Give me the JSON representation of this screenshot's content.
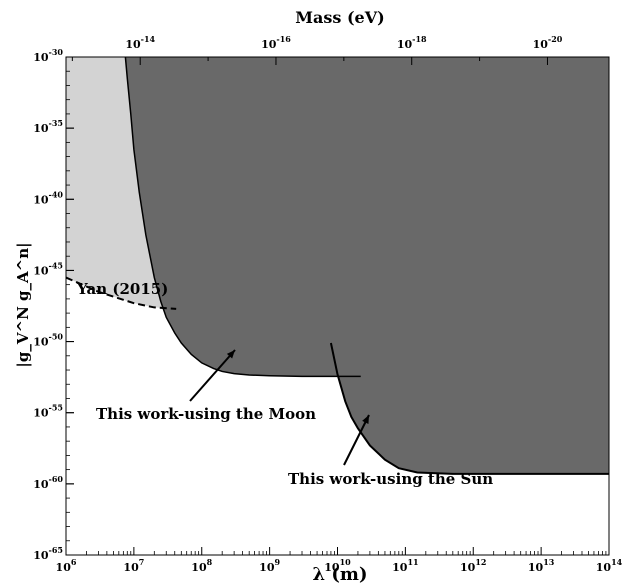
{
  "chart_data": {
    "type": "area",
    "xscale": "log",
    "yscale": "log",
    "xlim": [
      1000000.0,
      100000000000000.0
    ],
    "ylim": [
      1e-65,
      1e-30
    ],
    "xlabel": "λ (m)",
    "ylabel": "|g_V^N g_A^n|",
    "top_axis_label": "Mass (eV)",
    "grid": false,
    "x_ticks": [
      {
        "value": 1000000.0,
        "base": "10",
        "exp": "6"
      },
      {
        "value": 10000000.0,
        "base": "10",
        "exp": "7"
      },
      {
        "value": 100000000.0,
        "base": "10",
        "exp": "8"
      },
      {
        "value": 1000000000.0,
        "base": "10",
        "exp": "9"
      },
      {
        "value": 10000000000.0,
        "base": "10",
        "exp": "10"
      },
      {
        "value": 100000000000.0,
        "base": "10",
        "exp": "11"
      },
      {
        "value": 1000000000000.0,
        "base": "10",
        "exp": "12"
      },
      {
        "value": 10000000000000.0,
        "base": "10",
        "exp": "13"
      },
      {
        "value": 100000000000000.0,
        "base": "10",
        "exp": "14"
      }
    ],
    "y_ticks": [
      {
        "value": 1e-65,
        "base": "10",
        "exp": "-65"
      },
      {
        "value": 1e-60,
        "base": "10",
        "exp": "-60"
      },
      {
        "value": 1e-55,
        "base": "10",
        "exp": "-55"
      },
      {
        "value": 1e-50,
        "base": "10",
        "exp": "-50"
      },
      {
        "value": 1e-45,
        "base": "10",
        "exp": "-45"
      },
      {
        "value": 1e-40,
        "base": "10",
        "exp": "-40"
      },
      {
        "value": 1e-35,
        "base": "10",
        "exp": "-35"
      },
      {
        "value": 1e-30,
        "base": "10",
        "exp": "-30"
      }
    ],
    "top_ticks": [
      {
        "lambda": 12400000.0,
        "base": "10",
        "exp": "-14"
      },
      {
        "lambda": 1240000000.0,
        "base": "10",
        "exp": "-16"
      },
      {
        "lambda": 124000000000.0,
        "base": "10",
        "exp": "-18"
      },
      {
        "lambda": 12400000000000.0,
        "base": "10",
        "exp": "-20"
      }
    ],
    "series": [
      {
        "name": "Yan (2015)",
        "style": "dashed",
        "fill": "#d3d3d3",
        "points": [
          [
            1000000.0,
            -45.5
          ],
          [
            3000000.0,
            -46.5
          ],
          [
            10000000.0,
            -47.3
          ],
          [
            20000000.0,
            -47.6
          ],
          [
            42000000.0,
            -47.7
          ]
        ]
      },
      {
        "name": "This work-using the Moon",
        "style": "solid",
        "fill": "#696969",
        "points": [
          [
            7500000.0,
            -30
          ],
          [
            8000000.0,
            -31.5
          ],
          [
            9000000.0,
            -34
          ],
          [
            10000000.0,
            -36.5
          ],
          [
            12000000.0,
            -39.5
          ],
          [
            15000000.0,
            -42.5
          ],
          [
            20000000.0,
            -45.5
          ],
          [
            25000000.0,
            -47.2
          ],
          [
            30000000.0,
            -48.3
          ],
          [
            40000000.0,
            -49.4
          ],
          [
            50000000.0,
            -50.1
          ],
          [
            70000000.0,
            -50.9
          ],
          [
            100000000.0,
            -51.5
          ],
          [
            150000000.0,
            -51.9
          ],
          [
            200000000.0,
            -52.1
          ],
          [
            300000000.0,
            -52.25
          ],
          [
            500000000.0,
            -52.35
          ],
          [
            1000000000.0,
            -52.4
          ],
          [
            3000000000.0,
            -52.45
          ],
          [
            10000000000.0,
            -52.45
          ],
          [
            22000000000.0,
            -52.45
          ]
        ]
      },
      {
        "name": "This work-using the Sun",
        "style": "solid",
        "fill": "#696969",
        "points": [
          [
            8000000000.0,
            -50.1
          ],
          [
            10000000000.0,
            -52.3
          ],
          [
            13000000000.0,
            -54.2
          ],
          [
            16000000000.0,
            -55.3
          ],
          [
            20000000000.0,
            -56.1
          ],
          [
            30000000000.0,
            -57.3
          ],
          [
            50000000000.0,
            -58.3
          ],
          [
            80000000000.0,
            -58.9
          ],
          [
            150000000000.0,
            -59.2
          ],
          [
            500000000000.0,
            -59.3
          ],
          [
            100000000000000.0,
            -59.3
          ]
        ]
      }
    ],
    "annotations": [
      {
        "text": "Yan (2015)"
      },
      {
        "text": "This work-using the Moon"
      },
      {
        "text": "This work-using the Sun"
      }
    ],
    "colors": {
      "moon_fill": "#696969",
      "yan_fill": "#d3d3d3"
    }
  }
}
